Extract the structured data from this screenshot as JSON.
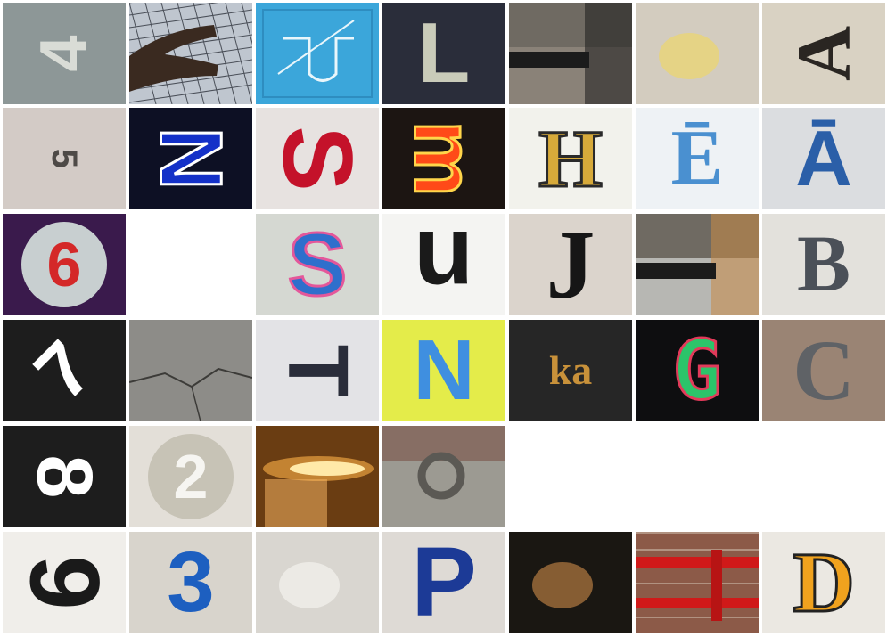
{
  "tiles": [
    {
      "r": 0,
      "c": 0,
      "kind": "text",
      "text": "4",
      "bg": "#8d9797",
      "color": "#d9dcd6",
      "size": 74,
      "rot": -90,
      "font": "sans"
    },
    {
      "r": 0,
      "c": 1,
      "kind": "photo",
      "name": "hand-tile",
      "bg": "#bfc6cf",
      "pattern": "grid",
      "accent": "#3a2a20"
    },
    {
      "r": 0,
      "c": 2,
      "kind": "photo",
      "name": "blue-diagram-tile",
      "bg": "#3ba6da",
      "pattern": "frame",
      "accent": "#e9f6fb"
    },
    {
      "r": 0,
      "c": 3,
      "kind": "text",
      "text": "L",
      "bg": "#2a2d3a",
      "color": "#c9cbb9",
      "size": 96,
      "rot": 0,
      "font": "sans"
    },
    {
      "r": 0,
      "c": 4,
      "kind": "photo",
      "name": "street-post-tile",
      "bg": "#8a8278",
      "pattern": "split",
      "accent": "#1b1b1b"
    },
    {
      "r": 0,
      "c": 5,
      "kind": "photo",
      "name": "bottle-tile",
      "bg": "#d3ccbf",
      "pattern": "blob",
      "accent": "#e8d37a"
    },
    {
      "r": 0,
      "c": 6,
      "kind": "text",
      "text": "A",
      "bg": "#d9d2c3",
      "color": "#2a2622",
      "size": 86,
      "rot": -90,
      "font": "serif"
    },
    {
      "r": 1,
      "c": 0,
      "kind": "text",
      "text": "5",
      "bg": "#d3cbc6",
      "color": "#4e4a47",
      "size": 40,
      "rot": 90,
      "font": "sans"
    },
    {
      "r": 1,
      "c": 1,
      "kind": "text",
      "text": "N",
      "bg": "#0d1024",
      "color": "#1431c8",
      "size": 98,
      "rot": 90,
      "font": "sans",
      "stroke": "#ffffff"
    },
    {
      "r": 1,
      "c": 2,
      "kind": "text",
      "text": "S",
      "bg": "#e7e2e0",
      "color": "#c4122a",
      "size": 110,
      "rot": 90,
      "font": "sans"
    },
    {
      "r": 1,
      "c": 3,
      "kind": "text",
      "text": "m",
      "bg": "#1c1512",
      "color": "#ff4a18",
      "size": 96,
      "rot": 90,
      "font": "sans",
      "stroke": "#ffd54a"
    },
    {
      "r": 1,
      "c": 4,
      "kind": "text",
      "text": "H",
      "bg": "#f2f2ec",
      "color": "#d7aa3a",
      "size": 92,
      "rot": 0,
      "font": "serif",
      "stroke": "#2a2a2a"
    },
    {
      "r": 1,
      "c": 5,
      "kind": "text",
      "text": "Ē",
      "bg": "#eef2f5",
      "color": "#4a90d0",
      "size": 88,
      "rot": 0,
      "font": "serif"
    },
    {
      "r": 1,
      "c": 6,
      "kind": "text",
      "text": "Ā",
      "bg": "#dbdde0",
      "color": "#2b5fa8",
      "size": 88,
      "rot": 0,
      "font": "sans"
    },
    {
      "r": 2,
      "c": 0,
      "kind": "text",
      "text": "6",
      "bg": "#3a1a4c",
      "color": "#d42828",
      "size": 70,
      "rot": 0,
      "font": "sans",
      "disc": "#c8cfd0"
    },
    {
      "r": 2,
      "c": 1,
      "kind": "blank"
    },
    {
      "r": 2,
      "c": 2,
      "kind": "text",
      "text": "S",
      "bg": "#d5d8d2",
      "color": "#2f6fcc",
      "size": 100,
      "rot": 0,
      "font": "sans",
      "stroke": "#e4579a"
    },
    {
      "r": 2,
      "c": 3,
      "kind": "text",
      "text": "n",
      "bg": "#f4f4f2",
      "color": "#1a1a1a",
      "size": 110,
      "rot": 180,
      "font": "sans"
    },
    {
      "r": 2,
      "c": 4,
      "kind": "text",
      "text": "J",
      "bg": "#dbd4cc",
      "color": "#161616",
      "size": 110,
      "rot": 0,
      "font": "serif"
    },
    {
      "r": 2,
      "c": 5,
      "kind": "photo",
      "name": "graffiti-wall-tile",
      "bg": "#b7b7b3",
      "pattern": "split",
      "accent": "#c98b45"
    },
    {
      "r": 2,
      "c": 6,
      "kind": "text",
      "text": "B",
      "bg": "#e3e1dc",
      "color": "#4b5058",
      "size": 90,
      "rot": 0,
      "font": "serif"
    },
    {
      "r": 3,
      "c": 0,
      "kind": "text",
      "text": "7",
      "bg": "#1d1d1d",
      "color": "#ffffff",
      "size": 86,
      "rot": -45,
      "font": "sans"
    },
    {
      "r": 3,
      "c": 1,
      "kind": "photo",
      "name": "pavement-tile",
      "bg": "#8d8c88",
      "pattern": "crack",
      "accent": "#3c3b38"
    },
    {
      "r": 3,
      "c": 2,
      "kind": "text",
      "text": "T",
      "bg": "#e3e3e6",
      "color": "#2a2d3a",
      "size": 96,
      "rot": 90,
      "font": "sans"
    },
    {
      "r": 3,
      "c": 3,
      "kind": "text",
      "text": "N",
      "bg": "#e4ec4a",
      "color": "#3f8fe0",
      "size": 96,
      "rot": 0,
      "font": "sans"
    },
    {
      "r": 3,
      "c": 4,
      "kind": "text",
      "text": "ka",
      "bg": "#262626",
      "color": "#c8913a",
      "size": 46,
      "rot": 0,
      "font": "serif"
    },
    {
      "r": 3,
      "c": 5,
      "kind": "text",
      "text": "G",
      "bg": "#0e0e10",
      "color": "#2cc46a",
      "size": 92,
      "rot": 0,
      "font": "mono",
      "stroke": "#e23a5a"
    },
    {
      "r": 3,
      "c": 6,
      "kind": "text",
      "text": "C",
      "bg": "#9a8474",
      "color": "#5f6266",
      "size": 96,
      "rot": 0,
      "font": "serif"
    },
    {
      "r": 4,
      "c": 0,
      "kind": "text",
      "text": "8",
      "bg": "#1d1d1d",
      "color": "#ffffff",
      "size": 88,
      "rot": 90,
      "font": "sans"
    },
    {
      "r": 4,
      "c": 1,
      "kind": "text",
      "text": "2",
      "bg": "#e3dfd8",
      "color": "#f6f5f1",
      "size": 70,
      "rot": 0,
      "font": "sans",
      "disc": "#c7c3b6"
    },
    {
      "r": 4,
      "c": 2,
      "kind": "photo",
      "name": "flame-tile",
      "bg": "#6a3d12",
      "pattern": "flame",
      "accent": "#ffe9a8"
    },
    {
      "r": 4,
      "c": 3,
      "kind": "photo",
      "name": "metal-ring-tile",
      "bg": "#9c9a92",
      "pattern": "ring",
      "accent": "#5b5954"
    },
    {
      "r": 4,
      "c": 4,
      "kind": "blank"
    },
    {
      "r": 4,
      "c": 5,
      "kind": "blank"
    },
    {
      "r": 4,
      "c": 6,
      "kind": "blank"
    },
    {
      "r": 5,
      "c": 0,
      "kind": "text",
      "text": "9",
      "bg": "#f0eeea",
      "color": "#1a1a1a",
      "size": 110,
      "rot": 90,
      "font": "sans"
    },
    {
      "r": 5,
      "c": 1,
      "kind": "text",
      "text": "3",
      "bg": "#d8d4cc",
      "color": "#1d5fc0",
      "size": 96,
      "rot": 0,
      "font": "sans"
    },
    {
      "r": 5,
      "c": 2,
      "kind": "photo",
      "name": "faint-sketch-tile",
      "bg": "#d9d6d0",
      "pattern": "blob",
      "accent": "#efede9"
    },
    {
      "r": 5,
      "c": 3,
      "kind": "text",
      "text": "P",
      "bg": "#dedad5",
      "color": "#1c3a96",
      "size": 110,
      "rot": 0,
      "font": "sans"
    },
    {
      "r": 5,
      "c": 4,
      "kind": "photo",
      "name": "night-animal-tile",
      "bg": "#1a1712",
      "pattern": "blob",
      "accent": "#9a6a3a"
    },
    {
      "r": 5,
      "c": 5,
      "kind": "photo",
      "name": "red-rails-tile",
      "bg": "#8c5a48",
      "pattern": "rails",
      "accent": "#d01919"
    },
    {
      "r": 5,
      "c": 6,
      "kind": "text",
      "text": "D",
      "bg": "#ebe8e2",
      "color": "#f0a21e",
      "size": 96,
      "rot": 0,
      "font": "serif",
      "stroke": "#222222"
    }
  ]
}
